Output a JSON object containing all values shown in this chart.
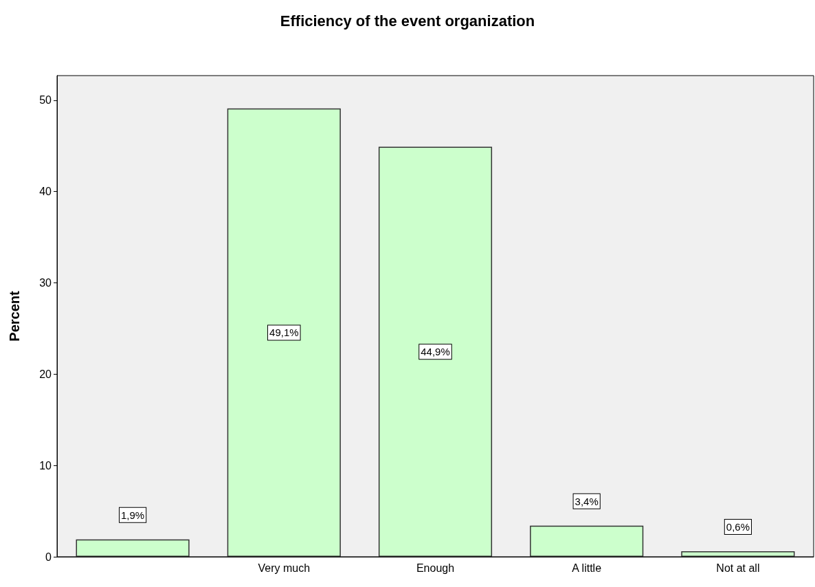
{
  "chart_data": {
    "type": "bar",
    "title": "Efficiency of the event organization",
    "ylabel": "Percent",
    "categories": [
      null,
      "Very much",
      "Enough",
      "A little",
      "Not at all"
    ],
    "values": [
      1.9,
      49.1,
      44.9,
      3.4,
      0.6
    ],
    "value_labels": [
      "1,9%",
      "49,1%",
      "44,9%",
      "3,4%",
      "0,6%"
    ],
    "color": "#ccffcc",
    "ylim": [
      0,
      52.7
    ],
    "yticks": [
      0,
      10,
      20,
      30,
      40,
      50
    ],
    "grid": false
  }
}
